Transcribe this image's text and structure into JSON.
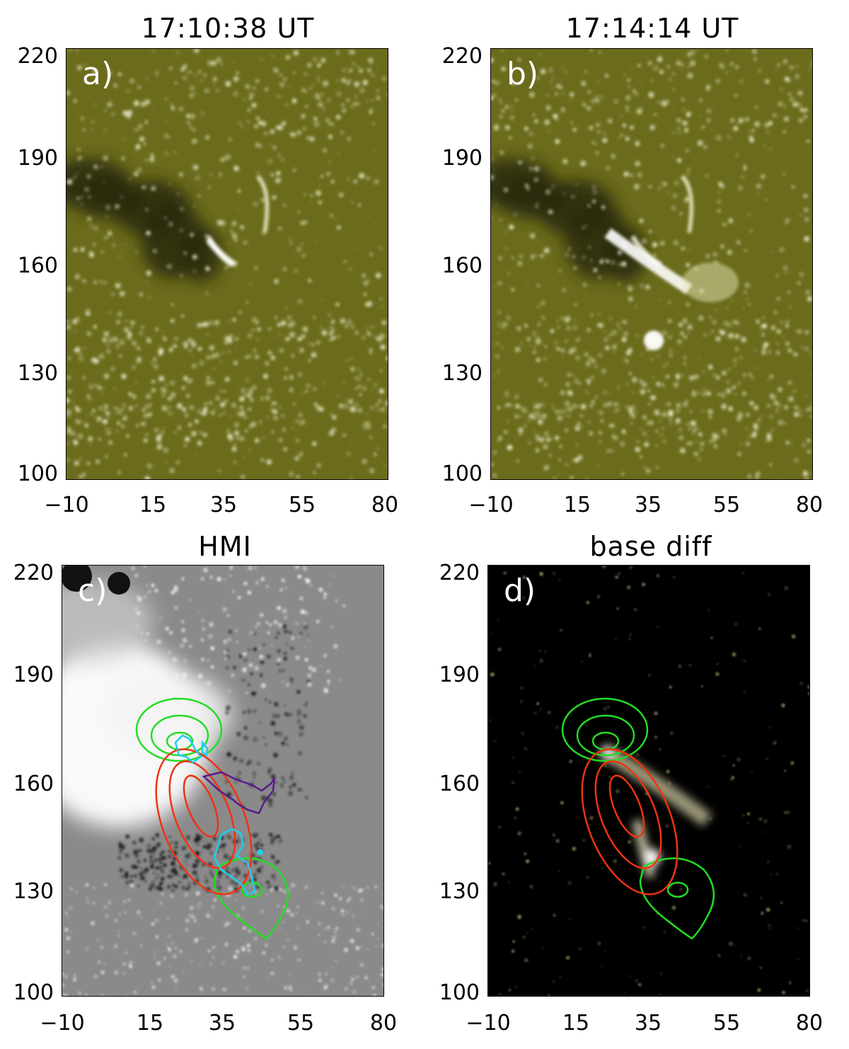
{
  "panels": [
    {
      "id": "a",
      "title": "17:10:38 UT",
      "label": "a)",
      "kind": "aia"
    },
    {
      "id": "b",
      "title": "17:14:14 UT",
      "label": "b)",
      "kind": "aia-flare"
    },
    {
      "id": "c",
      "title": "HMI",
      "label": "c)",
      "kind": "hmi"
    },
    {
      "id": "d",
      "title": "base diff",
      "label": "d)",
      "kind": "diff"
    }
  ],
  "axes": {
    "x_ticks": [
      "−10",
      "15",
      "35",
      "55",
      "80"
    ],
    "y_ticks": [
      "220",
      "190",
      "160",
      "130",
      "100"
    ]
  },
  "colors": {
    "aia_base": "#6b6b1c",
    "aia_dark": "#2c2c0a",
    "aia_bright": "#f4f4d6",
    "hmi_base": "#8a8a8a",
    "diff_base": "#000000",
    "contour_green": "#22dd22",
    "contour_red": "#ee3311",
    "contour_cyan": "#22ccee",
    "contour_purple": "#5a1a8a"
  }
}
